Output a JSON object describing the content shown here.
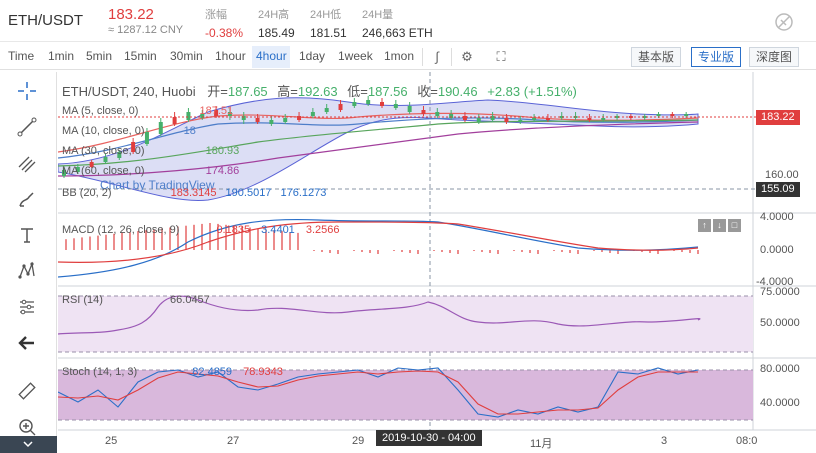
{
  "ticker": {
    "pair": "ETH/USDT",
    "price": "183.22",
    "cny": "≈ 1287.12 CNY",
    "stats": [
      {
        "label": "涨幅",
        "value": "-0.38%"
      },
      {
        "label": "24H高",
        "value": "185.49"
      },
      {
        "label": "24H低",
        "value": "181.51"
      },
      {
        "label": "24H量",
        "value": "246,663 ETH"
      }
    ]
  },
  "toolbar": {
    "intervals": [
      "Time",
      "1min",
      "5min",
      "15min",
      "30min",
      "1hour",
      "4hour",
      "1day",
      "1week",
      "1mon"
    ],
    "active_interval": "4hour",
    "views": [
      "基本版",
      "专业版",
      "深度图"
    ],
    "active_view": "专业版"
  },
  "tools": [
    "crosshair-icon",
    "trend-line-icon",
    "fibonacci-icon",
    "brush-icon",
    "text-icon",
    "pattern-icon",
    "measure-icon",
    "arrow-left-icon",
    "ruler-icon",
    "zoom-in-icon"
  ],
  "main": {
    "title": "ETH/USDT, 240, Huobi",
    "open_label": "开=",
    "open": "187.65",
    "high_label": "高=",
    "high": "192.63",
    "low_label": "低=",
    "low": "187.56",
    "close_label": "收=",
    "close": "190.46",
    "change": "+2.83 (+1.51%)",
    "watermark": "Chart by TradingView",
    "indicators": [
      {
        "label": "MA (5, close, 0)",
        "value": "187.51",
        "color": "#e8625f"
      },
      {
        "label": "MA (10, close, 0)",
        "value": "18",
        "color": "#4e7ec9"
      },
      {
        "label": "MA (30, close, 0)",
        "value": "180.93",
        "color": "#58a55c"
      },
      {
        "label": "MA (60, close, 0)",
        "value": "174.86",
        "color": "#a23f9c"
      }
    ],
    "bb": {
      "label": "BB (20, 2)",
      "values": [
        "183.3145",
        "190.5017",
        "176.1273"
      ]
    },
    "axis": [
      "160.00"
    ],
    "last_price": "183.22",
    "cursor_price": "155.09"
  },
  "macd": {
    "label": "MACD (12, 26, close, 9)",
    "values": [
      "0.1835",
      "3.4401",
      "3.2566"
    ],
    "axis": [
      "4.0000",
      "0.0000",
      "-4.0000"
    ]
  },
  "rsi": {
    "label": "RSI (14)",
    "value": "66.0457",
    "axis": [
      "75.0000",
      "50.0000"
    ]
  },
  "stoch": {
    "label": "Stoch (14, 1, 3)",
    "values": [
      "82.4859",
      "78.9343"
    ],
    "axis": [
      "80.0000",
      "40.0000"
    ]
  },
  "xaxis": {
    "ticks": [
      "25",
      "27",
      "29",
      "11月",
      "3",
      "08:0"
    ],
    "cursor_time": "2019-10-30 - 04:00"
  },
  "colors": {
    "up": "#46b06b",
    "down": "#e03e3e",
    "accent": "#2a6fc8",
    "band": "#c9cdf0"
  }
}
